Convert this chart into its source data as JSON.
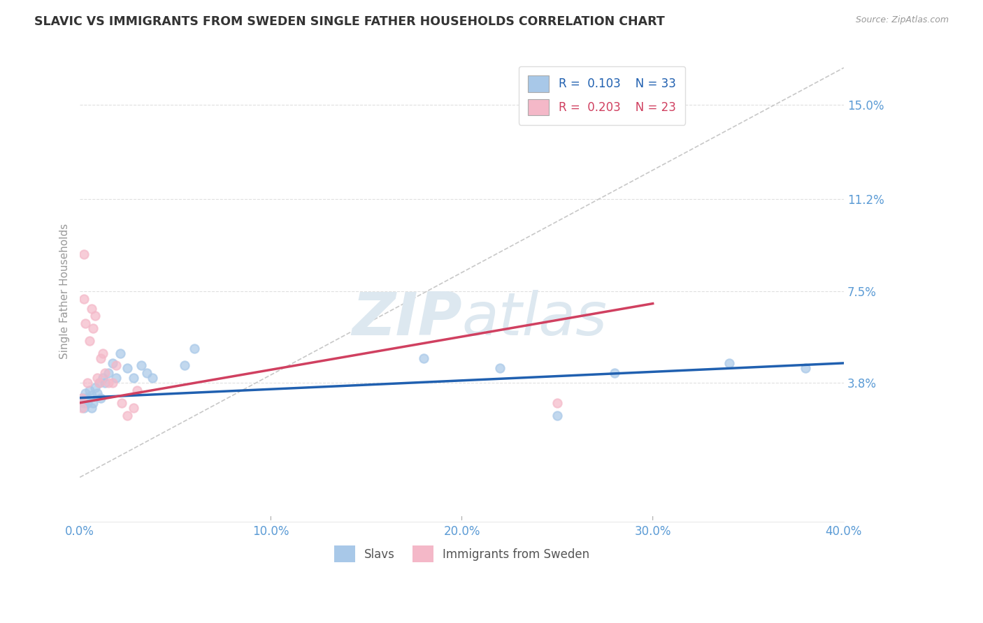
{
  "title": "SLAVIC VS IMMIGRANTS FROM SWEDEN SINGLE FATHER HOUSEHOLDS CORRELATION CHART",
  "source": "Source: ZipAtlas.com",
  "ylabel": "Single Father Households",
  "legend_entry1": {
    "label": "Slavs",
    "R": "0.103",
    "N": "33",
    "color": "#a8c8e8"
  },
  "legend_entry2": {
    "label": "Immigrants from Sweden",
    "R": "0.203",
    "N": "23",
    "color": "#f4b8c8"
  },
  "xlim": [
    0.0,
    0.4
  ],
  "ylim": [
    -0.018,
    0.168
  ],
  "yticks": [
    0.038,
    0.075,
    0.112,
    0.15
  ],
  "ytick_labels": [
    "3.8%",
    "7.5%",
    "11.2%",
    "15.0%"
  ],
  "xticks": [
    0.0,
    0.1,
    0.2,
    0.3,
    0.4
  ],
  "xtick_labels": [
    "0.0%",
    "10.0%",
    "20.0%",
    "30.0%",
    "40.0%"
  ],
  "slavs_x": [
    0.001,
    0.002,
    0.002,
    0.003,
    0.003,
    0.004,
    0.005,
    0.006,
    0.006,
    0.007,
    0.008,
    0.009,
    0.01,
    0.011,
    0.012,
    0.013,
    0.015,
    0.017,
    0.019,
    0.021,
    0.025,
    0.028,
    0.032,
    0.035,
    0.038,
    0.055,
    0.06,
    0.18,
    0.22,
    0.25,
    0.28,
    0.34,
    0.38
  ],
  "slavs_y": [
    0.032,
    0.03,
    0.028,
    0.034,
    0.032,
    0.03,
    0.035,
    0.033,
    0.028,
    0.03,
    0.036,
    0.034,
    0.038,
    0.032,
    0.04,
    0.038,
    0.042,
    0.046,
    0.04,
    0.05,
    0.044,
    0.04,
    0.045,
    0.042,
    0.04,
    0.045,
    0.052,
    0.048,
    0.044,
    0.025,
    0.042,
    0.046,
    0.044
  ],
  "sweden_x": [
    0.001,
    0.001,
    0.002,
    0.002,
    0.003,
    0.004,
    0.005,
    0.006,
    0.007,
    0.008,
    0.009,
    0.01,
    0.011,
    0.012,
    0.013,
    0.015,
    0.017,
    0.019,
    0.022,
    0.025,
    0.028,
    0.25,
    0.03
  ],
  "sweden_y": [
    0.032,
    0.028,
    0.072,
    0.09,
    0.062,
    0.038,
    0.055,
    0.068,
    0.06,
    0.065,
    0.04,
    0.038,
    0.048,
    0.05,
    0.042,
    0.038,
    0.038,
    0.045,
    0.03,
    0.025,
    0.028,
    0.03,
    0.035
  ],
  "blue_trend_x": [
    0.0,
    0.4
  ],
  "blue_trend_y": [
    0.032,
    0.046
  ],
  "pink_trend_x": [
    0.0,
    0.3
  ],
  "pink_trend_y": [
    0.03,
    0.07
  ],
  "ref_line_x": [
    0.0,
    0.4
  ],
  "ref_line_y": [
    0.0,
    0.165
  ],
  "watermark_zip": "ZIP",
  "watermark_atlas": "atlas",
  "title_color": "#333333",
  "axis_color": "#5b9bd5",
  "dot_size": 80,
  "blue_dot_color": "#a8c8e8",
  "pink_dot_color": "#f4b8c8",
  "blue_line_color": "#2060b0",
  "pink_line_color": "#d04060",
  "ref_line_color": "#c8c8c8",
  "grid_color": "#e0e0e0"
}
